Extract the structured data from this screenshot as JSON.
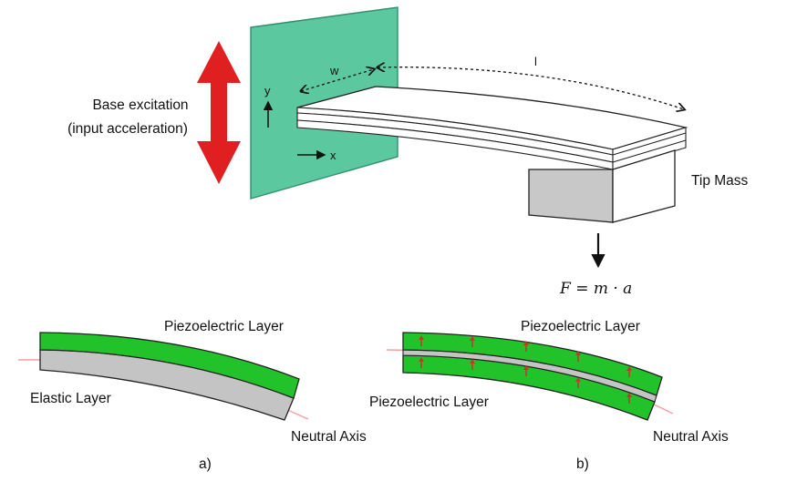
{
  "top": {
    "base_excitation_line1": "Base excitation",
    "base_excitation_line2": "(input acceleration)",
    "axis_y": "y",
    "axis_x": "x",
    "width_label": "w",
    "length_label": "l",
    "tip_mass_label": "Tip Mass",
    "force_formula": "F = m · a"
  },
  "panel_a": {
    "top_layer_label": "Piezoelectric Layer",
    "bottom_layer_label": "Elastic Layer",
    "neutral_axis_label": "Neutral Axis",
    "caption": "a)"
  },
  "panel_b": {
    "top_layer_label": "Piezoelectric Layer",
    "bottom_layer_label": "Piezoelectric Layer",
    "neutral_axis_label": "Neutral Axis",
    "caption": "b)"
  },
  "colors": {
    "base_plate": "#5cc8a0",
    "piezo": "#22c32a",
    "elastic": "#c4c4c4",
    "arrow_red": "#e02020",
    "neutral_axis": "#f2a0a0",
    "tip_mass": "#c8c8c8"
  }
}
